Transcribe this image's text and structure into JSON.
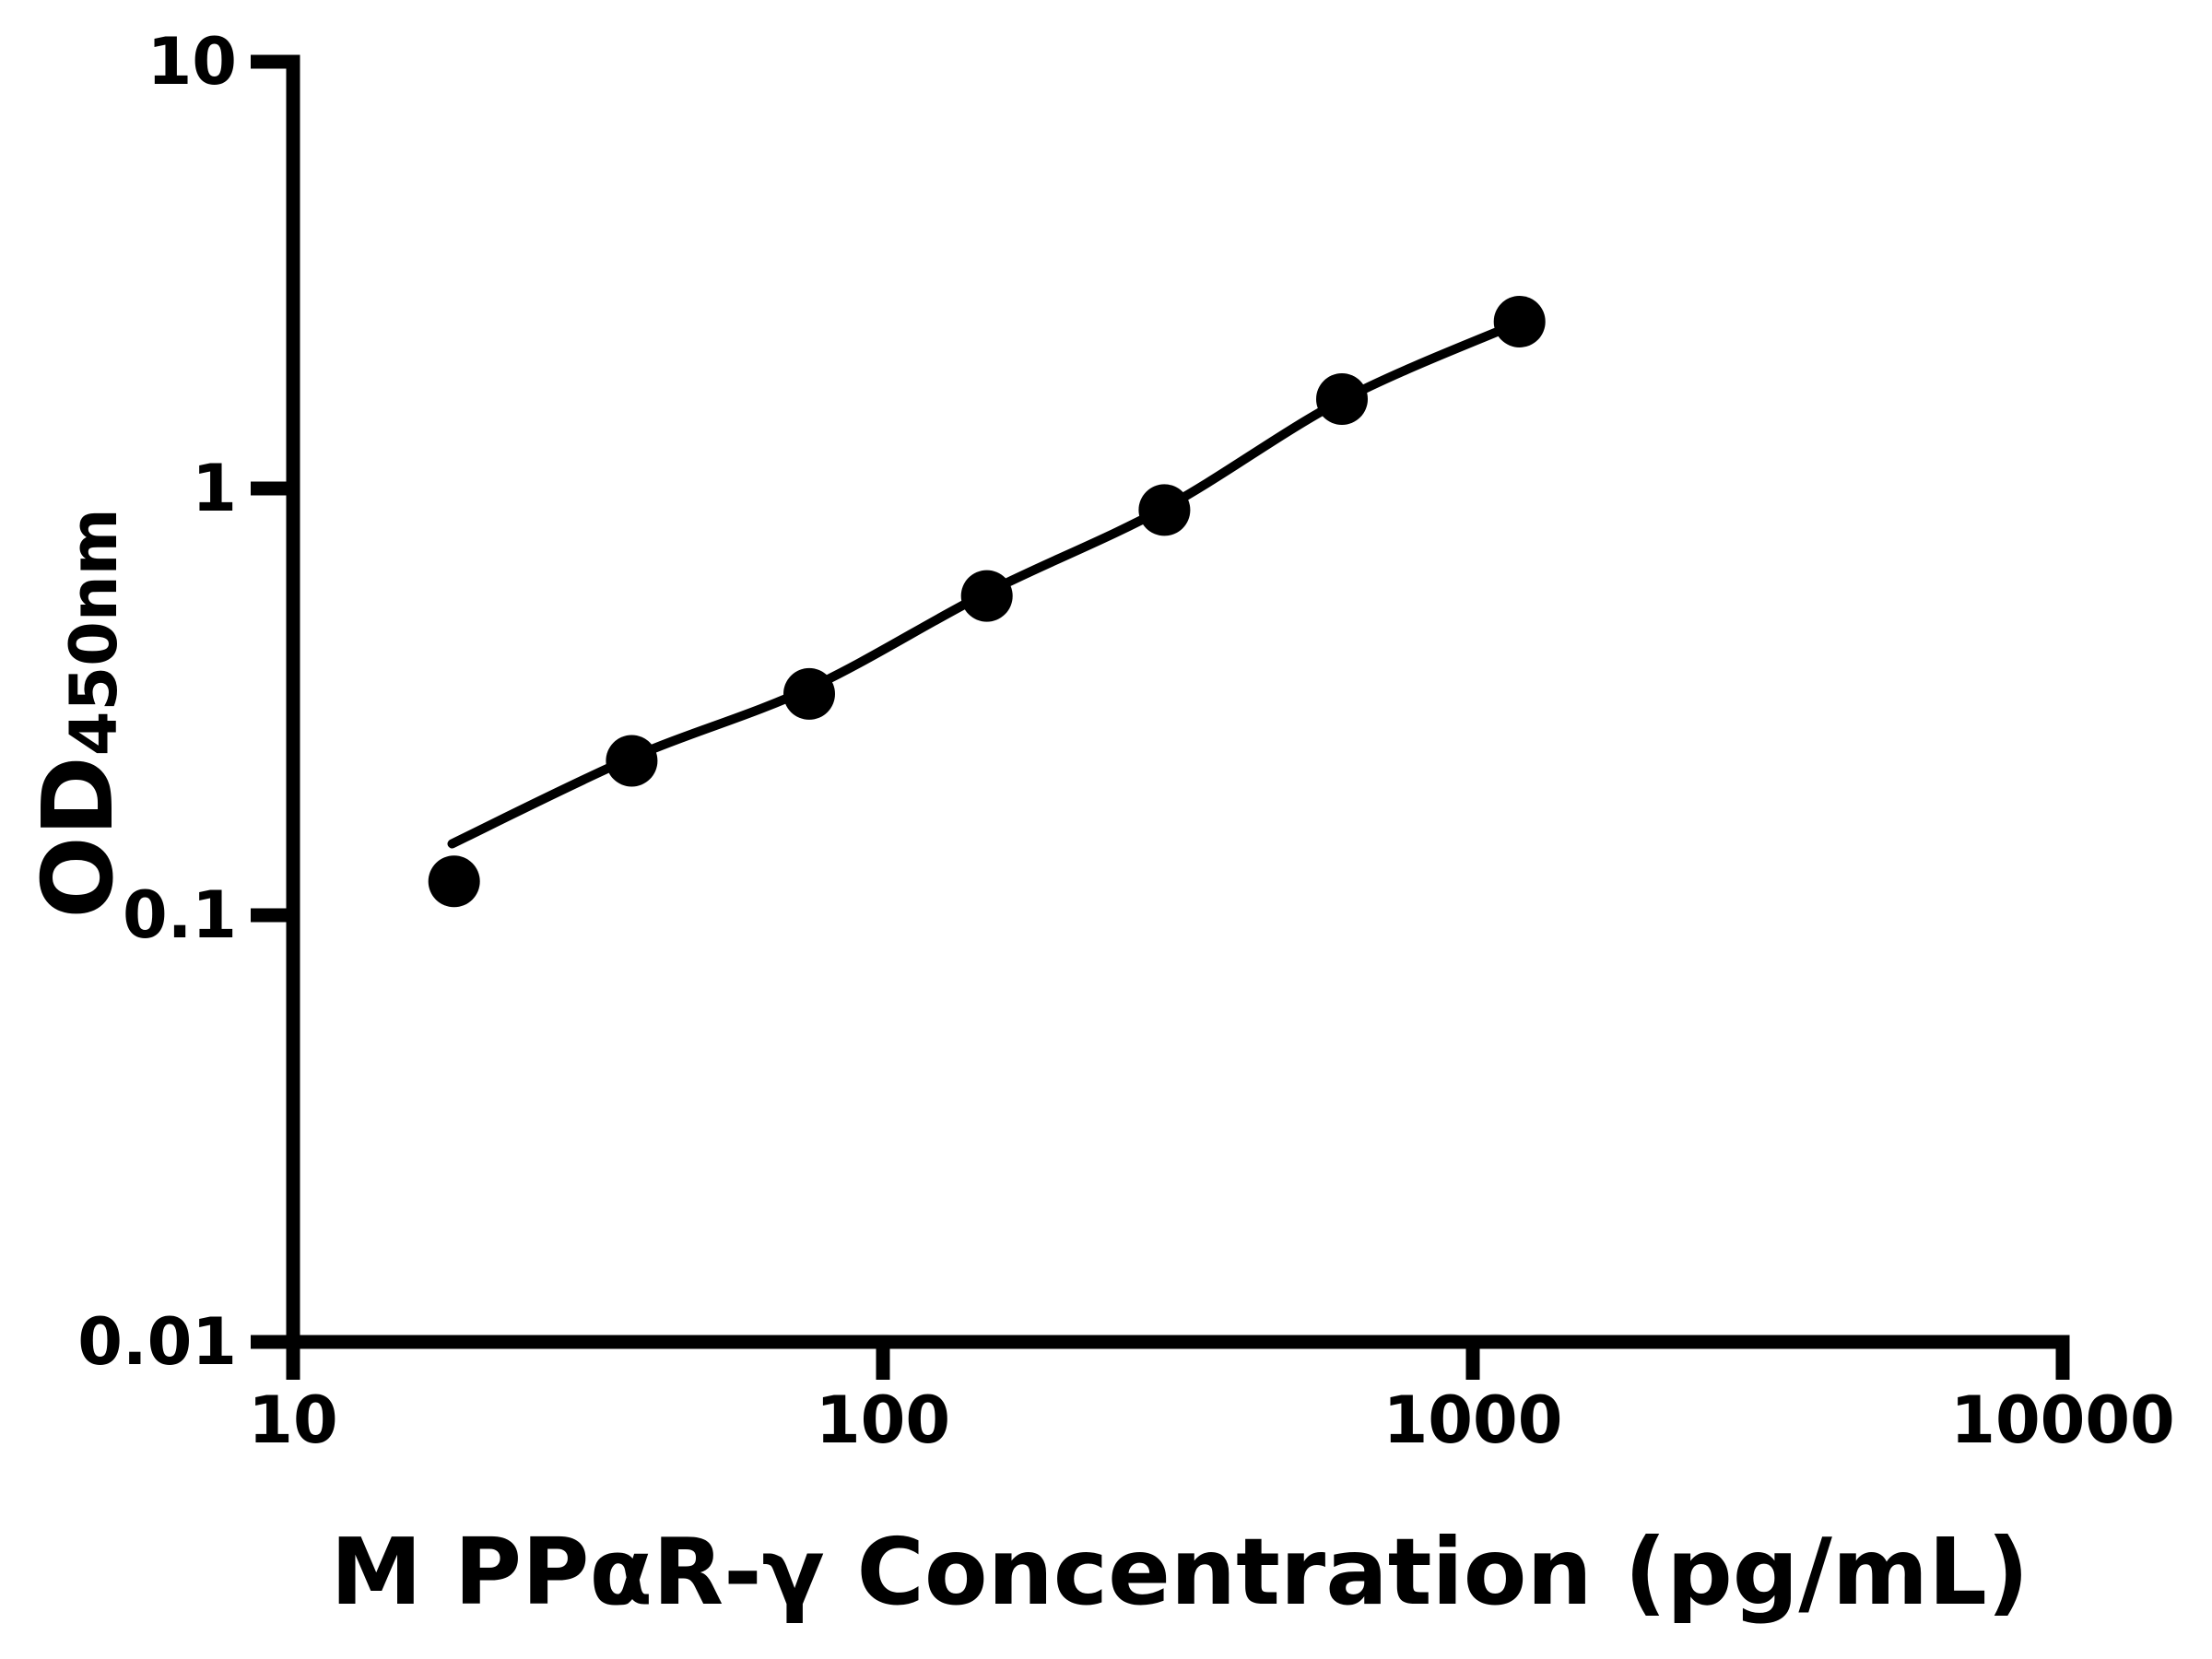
{
  "chart_data": {
    "type": "scatter",
    "title": "",
    "xlabel": "M PPαR-γ Concentration (pg/mL)",
    "ylabel": "OD450nm",
    "ylabel_main": "OD",
    "ylabel_sub": "450nm",
    "x_scale": "log",
    "y_scale": "log",
    "xlim": [
      10,
      10000
    ],
    "ylim": [
      0.01,
      10
    ],
    "x_ticks": [
      10,
      100,
      1000,
      10000
    ],
    "x_tick_labels": [
      "10",
      "100",
      "1000",
      "10000"
    ],
    "y_ticks": [
      10,
      1,
      0.1,
      0.01
    ],
    "y_tick_labels": [
      "10",
      "1",
      "0.1",
      "0.01"
    ],
    "grid": false,
    "legend": "none",
    "background_color": "#ffffff",
    "axis_color": "#000000",
    "marker_color": "#000000",
    "line_color": "#000000",
    "points": {
      "x": [
        18.75,
        37.5,
        75,
        150,
        300,
        600,
        1200
      ],
      "y": [
        0.12,
        0.23,
        0.33,
        0.56,
        0.89,
        1.62,
        2.46
      ]
    },
    "fit_curve": [
      [
        18.6,
        0.147
      ],
      [
        37.5,
        0.234
      ],
      [
        75,
        0.34
      ],
      [
        150,
        0.57
      ],
      [
        300,
        0.9
      ],
      [
        600,
        1.61
      ],
      [
        1200,
        2.45
      ]
    ]
  }
}
